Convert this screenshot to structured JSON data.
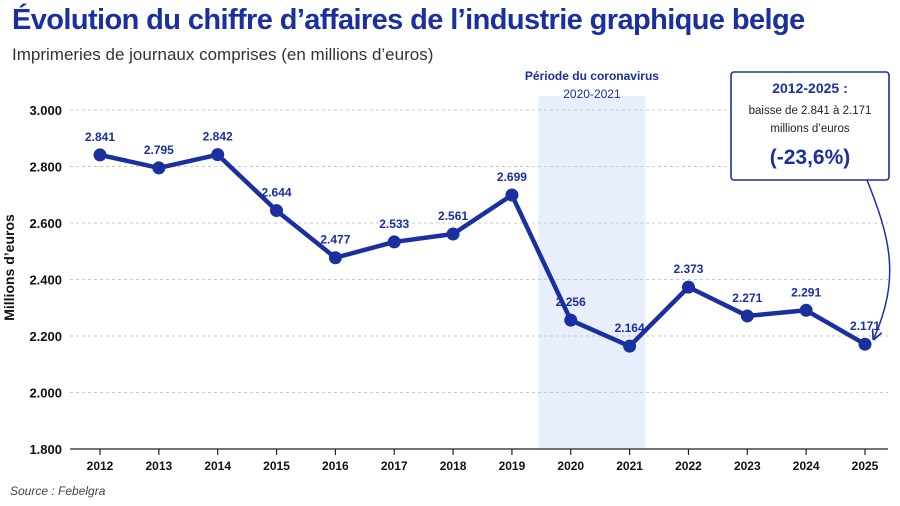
{
  "header": {
    "title": "Évolution du chiffre d’affaires de l’industrie graphique belge",
    "subtitle": "Imprimeries de journaux comprises (en millions d’euros)"
  },
  "source": "Source : Febelgra",
  "chart_data": {
    "type": "line",
    "ylabel": "Millions d’euros",
    "xlabel": "",
    "ylim": [
      1800,
      3000
    ],
    "yticks": [
      {
        "value": 1800,
        "label": "1.800"
      },
      {
        "value": 2000,
        "label": "2.000"
      },
      {
        "value": 2200,
        "label": "2.200"
      },
      {
        "value": 2400,
        "label": "2.400"
      },
      {
        "value": 2600,
        "label": "2.600"
      },
      {
        "value": 2800,
        "label": "2.800"
      },
      {
        "value": 3000,
        "label": "3.000"
      }
    ],
    "grid": "horizontal dashed",
    "categories": [
      "2012",
      "2013",
      "2014",
      "2015",
      "2016",
      "2017",
      "2018",
      "2019",
      "2020",
      "2021",
      "2022",
      "2023",
      "2024",
      "2025"
    ],
    "values": [
      2841,
      2795,
      2842,
      2644,
      2477,
      2533,
      2561,
      2699,
      2256,
      2164,
      2373,
      2271,
      2291,
      2171
    ],
    "value_labels": [
      "2.841",
      "2.795",
      "2.842",
      "2.644",
      "2.477",
      "2.533",
      "2.561",
      "2.699",
      "2.256",
      "2.164",
      "2.373",
      "2.271",
      "2.291",
      "2.171"
    ],
    "highlight": {
      "from": "2020",
      "to": "2021",
      "title": "Période du coronavirus",
      "subtitle": "2020-2021"
    },
    "callout": {
      "title": "2012-2025 :",
      "line1": "baisse de 2.841 à 2.171",
      "line2": "millions d’euros",
      "value": "(-23,6%)",
      "points_to": "2025"
    },
    "colors": {
      "line": "#1a2fa0",
      "highlight": "#e8eefb",
      "grid": "#c8c8c8",
      "axis": "#222222"
    }
  }
}
